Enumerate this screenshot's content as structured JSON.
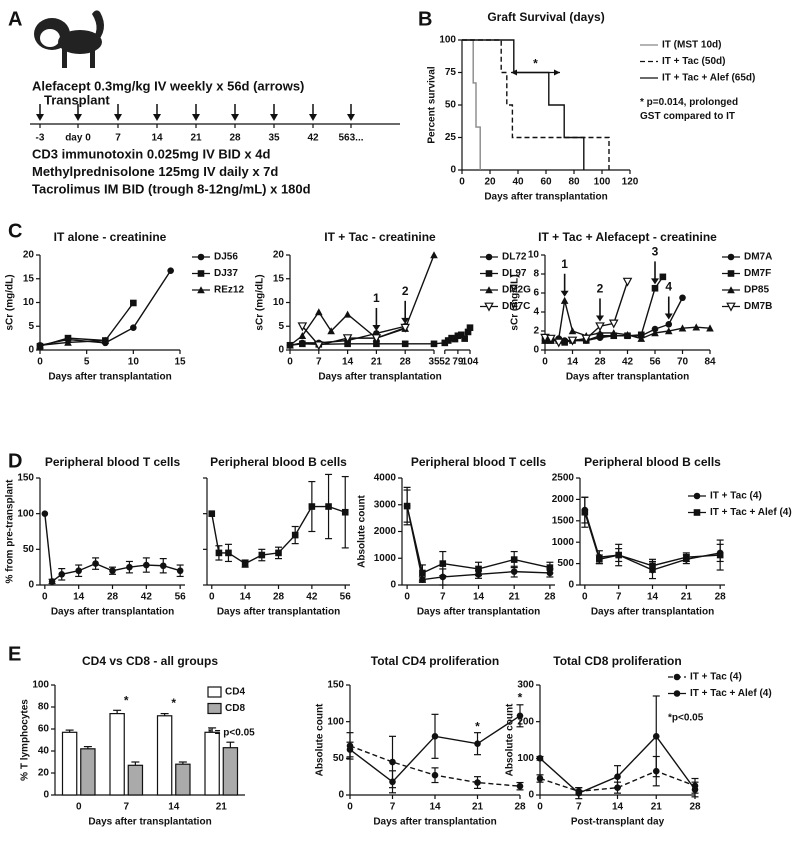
{
  "panel_labels": [
    "A",
    "B",
    "C",
    "D",
    "E"
  ],
  "timeline": {
    "header": "Alefacept 0.3mg/kg IV weekly x 56d (arrows)",
    "transplant": "Transplant",
    "days": [
      "-3",
      "day 0",
      "7",
      "14",
      "21",
      "28",
      "35",
      "42",
      "563..."
    ],
    "regimens": [
      "CD3 immunotoxin 0.025mg IV BID x 4d",
      "Methylprednisolone 125mg IV daily x 7d",
      "Tacrolimus IM BID (trough 8-12ng/mL) x 180d"
    ]
  },
  "chart_data": [
    {
      "type": "step",
      "title": "Graft Survival (days)",
      "xlabel": "Days after transplantation",
      "ylabel": "Percent survival",
      "xlim": [
        0,
        120
      ],
      "ylim": [
        0,
        100
      ],
      "xticks": [
        0,
        20,
        40,
        60,
        80,
        100,
        120
      ],
      "yticks": [
        0,
        25,
        50,
        75,
        100
      ],
      "series": [
        {
          "name": "IT (MST 10d)",
          "color": "#888888",
          "marker": "none",
          "dashed": false,
          "x": [
            5,
            8,
            10,
            13
          ],
          "values": [
            100,
            67,
            33,
            0
          ]
        },
        {
          "name": "IT + Tac (50d)",
          "color": "#111111",
          "marker": "none",
          "dashed": true,
          "x": [
            25,
            28,
            32,
            36,
            105
          ],
          "values": [
            100,
            75,
            50,
            25,
            0
          ]
        },
        {
          "name": "IT + Tac + Alef (65d)",
          "color": "#111111",
          "marker": "none",
          "dashed": false,
          "x": [
            10,
            37,
            62,
            73,
            87
          ],
          "values": [
            100,
            75,
            50,
            25,
            0
          ]
        }
      ],
      "notes": [
        "* p=0.014, prolonged",
        "GST compared to IT"
      ],
      "annotations": [
        {
          "kind": "double",
          "label": "*",
          "x": [
            35,
            70
          ],
          "y": 75
        }
      ]
    },
    {
      "type": "line",
      "title": "IT alone - creatinine",
      "xlabel": "Days after transplantation",
      "ylabel": "sCr (mg/dL)",
      "xlim": [
        0,
        15
      ],
      "ylim": [
        0,
        20
      ],
      "xticks": [
        0,
        5,
        10,
        15
      ],
      "yticks": [
        0,
        5,
        10,
        15,
        20
      ],
      "series": [
        {
          "name": "DJ56",
          "color": "#111111",
          "marker": "circle",
          "dashed": false,
          "x": [
            0,
            3,
            7,
            10,
            14
          ],
          "values": [
            1,
            2.2,
            1.5,
            4.7,
            16.7
          ]
        },
        {
          "name": "DJ37",
          "color": "#111111",
          "marker": "square",
          "dashed": false,
          "x": [
            0,
            3,
            7,
            10
          ],
          "values": [
            0.8,
            2.5,
            2,
            9.9
          ]
        },
        {
          "name": "REz12",
          "color": "#111111",
          "marker": "triangle",
          "dashed": false,
          "x": [
            0,
            3,
            7
          ],
          "values": [
            1,
            1.6,
            2
          ]
        }
      ]
    },
    {
      "type": "line",
      "title": "IT + Tac - creatinine",
      "xlabel": "Days after transplantation",
      "ylabel": "sCr (mg/dL)",
      "xlim": [
        0,
        104
      ],
      "xbreak": [
        35,
        52
      ],
      "ylim": [
        0,
        20
      ],
      "xticks": [
        0,
        7,
        14,
        21,
        28,
        35,
        52,
        79,
        104
      ],
      "yticks": [
        0,
        5,
        10,
        15,
        20
      ],
      "series": [
        {
          "name": "DL72",
          "color": "#111111",
          "marker": "circle",
          "dashed": false,
          "x": [
            0,
            3,
            7,
            14,
            21,
            28
          ],
          "values": [
            1,
            1.5,
            1.5,
            2,
            3.5,
            5
          ]
        },
        {
          "name": "DL97",
          "color": "#111111",
          "marker": "square",
          "dashed": false,
          "x": [
            0,
            3,
            7,
            14,
            21,
            28,
            35,
            52,
            59,
            66,
            73,
            79,
            86,
            93,
            100,
            104
          ],
          "values": [
            1,
            1.3,
            1.2,
            1.3,
            1.3,
            1.3,
            1.3,
            1.5,
            2,
            2.5,
            2.3,
            3,
            3.2,
            2.4,
            3.8,
            4.7
          ]
        },
        {
          "name": "DM2G",
          "color": "#111111",
          "marker": "triangle",
          "dashed": false,
          "x": [
            0,
            3,
            7,
            10,
            14,
            21,
            28,
            35
          ],
          "values": [
            1,
            3,
            8,
            4,
            7.5,
            2.5,
            4.5,
            20
          ]
        },
        {
          "name": "DM7C",
          "color": "#111111",
          "marker": "triangle-open",
          "dashed": false,
          "x": [
            3,
            7,
            14,
            21,
            28
          ],
          "values": [
            5,
            1,
            2.5,
            2.5,
            4.7
          ]
        }
      ],
      "annotations": [
        {
          "kind": "arrow",
          "label": "1",
          "x": 21,
          "y": 3.8
        },
        {
          "kind": "arrow",
          "label": "2",
          "x": 28,
          "y": 5.3
        }
      ]
    },
    {
      "type": "line",
      "title": "IT + Tac + Alefacept - creatinine",
      "xlabel": "Days after transplantation",
      "ylabel": "sCr (mg/dL)",
      "xlim": [
        0,
        84
      ],
      "ylim": [
        0,
        10
      ],
      "xticks": [
        0,
        14,
        28,
        42,
        56,
        70,
        84
      ],
      "yticks": [
        0,
        2,
        4,
        6,
        8,
        10
      ],
      "series": [
        {
          "name": "DM7A",
          "color": "#111111",
          "marker": "circle",
          "dashed": false,
          "x": [
            0,
            3,
            7,
            10,
            14,
            21,
            28,
            35,
            42,
            49,
            56,
            63,
            70
          ],
          "values": [
            1,
            1,
            1.2,
            1,
            1,
            1,
            1.3,
            1.5,
            1.5,
            1.5,
            2.2,
            2.7,
            5.5
          ]
        },
        {
          "name": "DM7F",
          "color": "#111111",
          "marker": "square",
          "dashed": false,
          "x": [
            0,
            3,
            7,
            10,
            14,
            21,
            28,
            35,
            42,
            49,
            56,
            60
          ],
          "values": [
            1,
            1,
            1,
            0.8,
            1,
            1,
            1.5,
            1.5,
            1.5,
            1.6,
            6.5,
            7.7
          ]
        },
        {
          "name": "DP85",
          "color": "#111111",
          "marker": "triangle",
          "dashed": false,
          "x": [
            0,
            3,
            7,
            10,
            14,
            21,
            28,
            35,
            42,
            49,
            56,
            63,
            70,
            77,
            84
          ],
          "values": [
            1,
            1,
            1.2,
            5.2,
            2,
            1.5,
            1.8,
            1.8,
            1.6,
            1.2,
            1.8,
            2,
            2.3,
            2.4,
            2.3
          ]
        },
        {
          "name": "DM7B",
          "color": "#111111",
          "marker": "triangle-open",
          "dashed": false,
          "x": [
            0,
            3,
            7,
            14,
            21,
            28,
            35,
            42
          ],
          "values": [
            1.3,
            1.2,
            0.8,
            1,
            1.2,
            2.5,
            2.8,
            7.2
          ]
        }
      ],
      "annotations": [
        {
          "kind": "arrow",
          "label": "1",
          "x": 10,
          "y": 5.5
        },
        {
          "kind": "arrow",
          "label": "2",
          "x": 28,
          "y": 2.9
        },
        {
          "kind": "arrow",
          "label": "3",
          "x": 56,
          "y": 6.8
        },
        {
          "kind": "arrow",
          "label": "4",
          "x": 63,
          "y": 3.1
        }
      ]
    },
    {
      "type": "line",
      "title": "Peripheral blood T cells",
      "xlabel": "Days after transplantation",
      "ylabel": "% from pre-transplant",
      "xlim": [
        -2,
        58
      ],
      "ylim": [
        0,
        150
      ],
      "xticks": [
        0,
        14,
        28,
        42,
        56
      ],
      "yticks": [
        0,
        50,
        100,
        150
      ],
      "series": [
        {
          "name": "T cells",
          "color": "#111111",
          "marker": "circle",
          "dashed": false,
          "x": [
            0,
            3,
            7,
            14,
            21,
            28,
            35,
            42,
            49,
            56
          ],
          "values": [
            100,
            5,
            15,
            20,
            30,
            20,
            25,
            28,
            27,
            20
          ],
          "errors": [
            0,
            3,
            8,
            8,
            8,
            5,
            8,
            10,
            10,
            8
          ]
        }
      ]
    },
    {
      "type": "line",
      "title": "Peripheral blood B cells",
      "xlabel": "Days after transplantation",
      "xlim": [
        -2,
        58
      ],
      "ylim": [
        0,
        150
      ],
      "xticks": [
        0,
        14,
        28,
        42,
        56
      ],
      "yticks": [
        0,
        50,
        100,
        150
      ],
      "ytick_labels": false,
      "series": [
        {
          "name": "B cells",
          "color": "#111111",
          "marker": "square",
          "dashed": false,
          "x": [
            0,
            3,
            7,
            14,
            21,
            28,
            35,
            42,
            49,
            56
          ],
          "values": [
            100,
            45,
            45,
            30,
            42,
            45,
            70,
            110,
            110,
            102
          ],
          "errors": [
            0,
            10,
            12,
            5,
            8,
            8,
            12,
            35,
            45,
            50
          ]
        }
      ]
    },
    {
      "type": "line",
      "title": "Peripheral blood T cells",
      "xlabel": "Days after transplantation",
      "ylabel": "Absolute count",
      "xlim": [
        -1,
        29
      ],
      "ylim": [
        0,
        4000
      ],
      "xticks": [
        0,
        7,
        14,
        21,
        28
      ],
      "yticks": [
        0,
        1000,
        2000,
        3000,
        4000
      ],
      "series": [
        {
          "name": "IT + Tac (4)",
          "color": "#111111",
          "marker": "circle",
          "dashed": false,
          "x": [
            0,
            3,
            7,
            14,
            21,
            28
          ],
          "values": [
            2950,
            200,
            300,
            400,
            500,
            450
          ],
          "errors": [
            600,
            100,
            300,
            150,
            200,
            150
          ]
        },
        {
          "name": "IT + Tac + Alef (4)",
          "color": "#111111",
          "marker": "square",
          "dashed": false,
          "x": [
            0,
            3,
            7,
            14,
            21,
            28
          ],
          "values": [
            2950,
            450,
            800,
            600,
            950,
            650
          ],
          "errors": [
            700,
            300,
            450,
            250,
            300,
            200
          ]
        }
      ]
    },
    {
      "type": "line",
      "title": "Peripheral blood B cells",
      "xlabel": "Days after transplantation",
      "xlim": [
        -1,
        29
      ],
      "ylim": [
        0,
        2500
      ],
      "xticks": [
        0,
        7,
        14,
        21,
        28
      ],
      "yticks": [
        0,
        500,
        1000,
        1500,
        2000,
        2500
      ],
      "legend": true,
      "series": [
        {
          "name": "IT + Tac (4)",
          "color": "#111111",
          "marker": "circle",
          "dashed": false,
          "x": [
            0,
            3,
            7,
            14,
            21,
            28
          ],
          "values": [
            1750,
            650,
            700,
            350,
            600,
            750
          ],
          "errors": [
            300,
            150,
            250,
            200,
            100,
            200
          ]
        },
        {
          "name": "IT + Tac + Alef (4)",
          "color": "#111111",
          "marker": "square",
          "dashed": false,
          "x": [
            0,
            3,
            7,
            14,
            21,
            28
          ],
          "values": [
            1700,
            600,
            700,
            450,
            650,
            700
          ],
          "errors": [
            350,
            100,
            150,
            150,
            100,
            350
          ]
        }
      ]
    },
    {
      "type": "bar",
      "title": "CD4 vs CD8 - all groups",
      "xlabel": "Days after transplantation",
      "ylabel": "% T lymphocytes",
      "categories": [
        "0",
        "7",
        "14",
        "21"
      ],
      "ylim": [
        0,
        100
      ],
      "yticks": [
        0,
        20,
        40,
        60,
        80,
        100
      ],
      "legend": true,
      "series": [
        {
          "name": "CD4",
          "color": "#ffffff",
          "values": [
            57,
            74,
            72,
            57
          ],
          "errors": [
            2,
            3,
            2,
            4
          ]
        },
        {
          "name": "CD8",
          "color": "#aaaaaa",
          "values": [
            42,
            27,
            28,
            43
          ],
          "errors": [
            2,
            3,
            2,
            5
          ]
        }
      ],
      "notes": [
        "* = p<0.05"
      ],
      "annotations": [
        {
          "kind": "text",
          "label": "*",
          "x": "7",
          "y": 85
        },
        {
          "kind": "text",
          "label": "*",
          "x": "14",
          "y": 83
        }
      ]
    },
    {
      "type": "line",
      "title": "Total CD4 proliferation",
      "xlabel": "Days after transplantation",
      "ylabel": "Absolute count",
      "xlim": [
        0,
        28
      ],
      "ylim": [
        0,
        150
      ],
      "xticks": [
        0,
        7,
        14,
        21,
        28
      ],
      "yticks": [
        0,
        50,
        100,
        150
      ],
      "series": [
        {
          "name": "IT + Tac (4)",
          "color": "#111111",
          "marker": "circle",
          "dashed": true,
          "x": [
            0,
            7,
            14,
            21,
            28
          ],
          "values": [
            67,
            45,
            27,
            17,
            12
          ],
          "errors": [
            18,
            35,
            10,
            8,
            5
          ]
        },
        {
          "name": "IT + Tac + Alef (4)",
          "color": "#111111",
          "marker": "circle",
          "dashed": false,
          "x": [
            0,
            7,
            14,
            21,
            28
          ],
          "values": [
            62,
            18,
            80,
            70,
            108
          ],
          "errors": [
            10,
            15,
            30,
            15,
            15
          ]
        }
      ],
      "annotations": [
        {
          "kind": "text",
          "label": "*",
          "x": 21,
          "y": 92
        },
        {
          "kind": "text",
          "label": "*",
          "x": 28,
          "y": 132
        }
      ]
    },
    {
      "type": "line",
      "title": "Total CD8 proliferation",
      "xlabel": "Post-transplant day",
      "ylabel": "Absolute count",
      "xlim": [
        0,
        28
      ],
      "ylim": [
        0,
        300
      ],
      "xticks": [
        0,
        7,
        14,
        21,
        28
      ],
      "yticks": [
        0,
        100,
        200,
        300
      ],
      "legend": true,
      "series": [
        {
          "name": "IT + Tac (4)",
          "color": "#111111",
          "marker": "circle",
          "dashed": true,
          "x": [
            0,
            7,
            14,
            21,
            28
          ],
          "values": [
            45,
            10,
            20,
            65,
            25
          ],
          "errors": [
            10,
            10,
            15,
            40,
            20
          ]
        },
        {
          "name": "IT + Tac + Alef (4)",
          "color": "#111111",
          "marker": "circle",
          "dashed": false,
          "x": [
            0,
            7,
            14,
            21,
            28
          ],
          "values": [
            100,
            5,
            50,
            160,
            15
          ],
          "errors": [
            5,
            15,
            30,
            110,
            20
          ]
        }
      ],
      "notes": [
        "*p<0.05"
      ]
    }
  ]
}
